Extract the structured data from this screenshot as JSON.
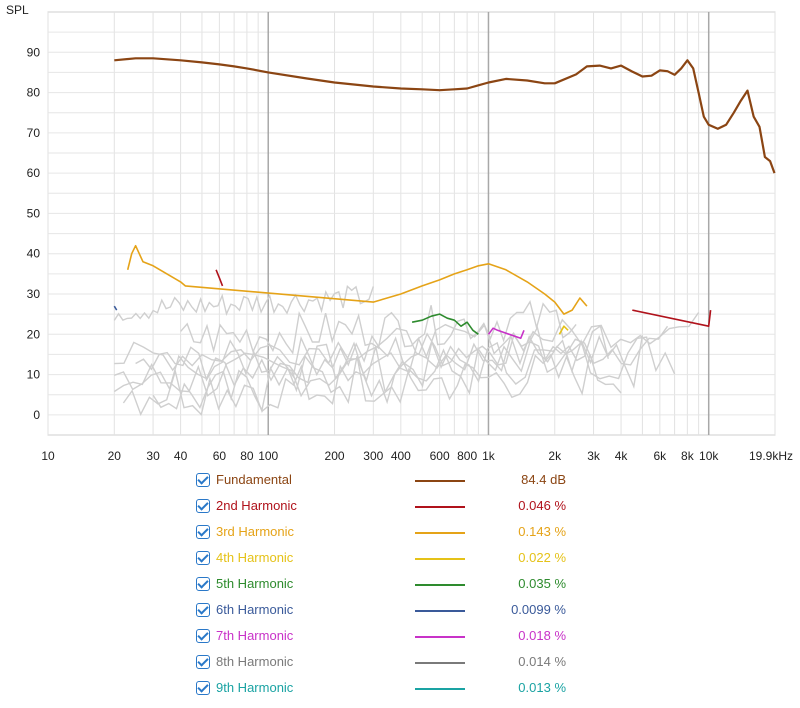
{
  "chart_data": {
    "type": "line",
    "title": "",
    "ylabel": "SPL",
    "xlabel": "",
    "x_scale": "log",
    "xlim": [
      10,
      20000
    ],
    "ylim": [
      -5,
      100
    ],
    "grid": true,
    "x_ticks": [
      {
        "v": 10,
        "label": "10"
      },
      {
        "v": 20,
        "label": "20"
      },
      {
        "v": 30,
        "label": "30"
      },
      {
        "v": 40,
        "label": "40"
      },
      {
        "v": 60,
        "label": "60"
      },
      {
        "v": 80,
        "label": "80"
      },
      {
        "v": 100,
        "label": "100"
      },
      {
        "v": 200,
        "label": "200"
      },
      {
        "v": 300,
        "label": "300"
      },
      {
        "v": 400,
        "label": "400"
      },
      {
        "v": 600,
        "label": "600"
      },
      {
        "v": 800,
        "label": "800"
      },
      {
        "v": 1000,
        "label": "1k"
      },
      {
        "v": 2000,
        "label": "2k"
      },
      {
        "v": 3000,
        "label": "3k"
      },
      {
        "v": 4000,
        "label": "4k"
      },
      {
        "v": 6000,
        "label": "6k"
      },
      {
        "v": 8000,
        "label": "8k"
      },
      {
        "v": 10000,
        "label": "10k"
      },
      {
        "v": 19900,
        "label": "19.9kHz"
      }
    ],
    "y_ticks": [
      0,
      10,
      20,
      30,
      40,
      50,
      60,
      70,
      80,
      90
    ],
    "series": [
      {
        "name": "Fundamental",
        "color": "#8B4513",
        "x": [
          20,
          25,
          30,
          40,
          50,
          60,
          70,
          80,
          100,
          150,
          200,
          300,
          400,
          500,
          600,
          700,
          800,
          900,
          1000,
          1200,
          1500,
          1800,
          2000,
          2500,
          2800,
          3200,
          3600,
          4000,
          4500,
          5000,
          5500,
          6000,
          6500,
          7000,
          7500,
          8000,
          8500,
          9000,
          9500,
          10000,
          11000,
          12000,
          13000,
          14000,
          15000,
          16000,
          17000,
          18000,
          19000,
          19900
        ],
        "y": [
          88,
          88.5,
          88.5,
          88,
          87.5,
          87,
          86.5,
          86,
          85,
          83.5,
          82.5,
          81.5,
          81,
          80.8,
          80.6,
          80.8,
          81,
          81.8,
          82.5,
          83.4,
          83,
          82.3,
          82.3,
          84.5,
          86.5,
          86.7,
          86,
          86.7,
          85.2,
          84,
          84.2,
          85.5,
          85.3,
          84.4,
          86,
          88,
          86,
          80,
          74,
          72,
          71,
          72,
          75,
          78,
          80.5,
          74,
          71.5,
          64,
          63,
          60
        ]
      },
      {
        "name": "2nd Harmonic",
        "color": "#B0121B",
        "x": [
          58,
          60,
          62,
          4400,
          4500,
          10000,
          10200
        ],
        "y": [
          36,
          34,
          32,
          null,
          26,
          22,
          26
        ]
      },
      {
        "name": "3rd Harmonic",
        "color": "#E5A318",
        "x": [
          23,
          24,
          25,
          27,
          30,
          40,
          42,
          300,
          400,
          500,
          600,
          700,
          800,
          900,
          1000,
          1200,
          1500,
          1800,
          2000,
          2200,
          2400,
          2600,
          2800
        ],
        "y": [
          36,
          40,
          42,
          38,
          37,
          33,
          32,
          28,
          30,
          32,
          33.5,
          35,
          36,
          37,
          37.5,
          36,
          33,
          30,
          28,
          25,
          26,
          29,
          27
        ]
      },
      {
        "name": "4th Harmonic",
        "color": "#E5C218",
        "x": [
          2100,
          2200,
          2300
        ],
        "y": [
          20,
          22,
          21
        ]
      },
      {
        "name": "5th Harmonic",
        "color": "#2E8B2E",
        "x": [
          450,
          500,
          550,
          600,
          650,
          700,
          750,
          800,
          850,
          900
        ],
        "y": [
          23,
          23.5,
          24.5,
          25,
          24,
          23.5,
          22,
          23,
          21,
          20
        ]
      },
      {
        "name": "6th Harmonic",
        "color": "#3A5A9A",
        "x": [
          20,
          20.5
        ],
        "y": [
          27,
          26
        ]
      },
      {
        "name": "7th Harmonic",
        "color": "#C832C8",
        "x": [
          1000,
          1050,
          1100,
          1400,
          1450
        ],
        "y": [
          20,
          21.5,
          21,
          19,
          21
        ]
      },
      {
        "name": "8th Harmonic",
        "color": "#7A7A7A",
        "x": [],
        "y": []
      },
      {
        "name": "9th Harmonic",
        "color": "#1AA3A3",
        "x": [],
        "y": []
      }
    ]
  },
  "legend": [
    {
      "label": "Fundamental",
      "value": "84.4 dB",
      "color": "#8B4513",
      "checked": true
    },
    {
      "label": "2nd Harmonic",
      "value": "0.046 %",
      "color": "#B0121B",
      "checked": true
    },
    {
      "label": "3rd Harmonic",
      "value": "0.143 %",
      "color": "#E5A318",
      "checked": true
    },
    {
      "label": "4th Harmonic",
      "value": "0.022 %",
      "color": "#E5C218",
      "checked": true
    },
    {
      "label": "5th Harmonic",
      "value": "0.035 %",
      "color": "#2E8B2E",
      "checked": true
    },
    {
      "label": "6th Harmonic",
      "value": "0.0099 %",
      "color": "#3A5A9A",
      "checked": true
    },
    {
      "label": "7th Harmonic",
      "value": "0.018 %",
      "color": "#C832C8",
      "checked": true
    },
    {
      "label": "8th Harmonic",
      "value": "0.014 %",
      "color": "#7A7A7A",
      "checked": true
    },
    {
      "label": "9th Harmonic",
      "value": "0.013 %",
      "color": "#1AA3A3",
      "checked": true
    }
  ]
}
